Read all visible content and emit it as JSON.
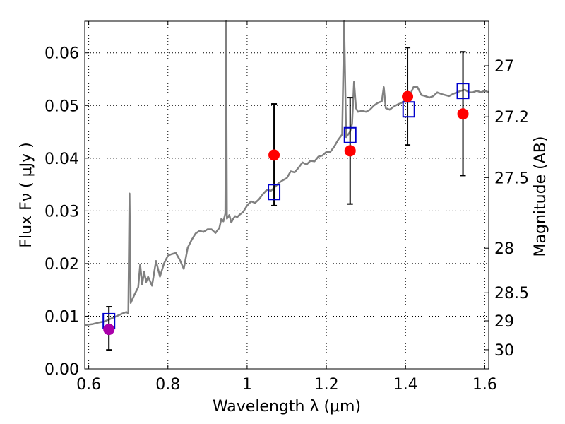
{
  "chart_data": {
    "type": "scatter",
    "xlabel": "Wavelength  λ (μm)",
    "ylabel": "Flux  Fν  ( μJy )",
    "y2label": "Magnitude (AB)",
    "xlim": [
      0.59,
      1.61
    ],
    "ylim": [
      0.0,
      0.066
    ],
    "grid": true,
    "x_ticks": [
      0.6,
      0.8,
      1.0,
      1.2,
      1.4,
      1.6
    ],
    "x_tick_labels": [
      "0.6",
      "0.8",
      "1",
      "1.2",
      "1.4",
      "1.6"
    ],
    "y_ticks": [
      0.0,
      0.01,
      0.02,
      0.03,
      0.04,
      0.05,
      0.06
    ],
    "y_tick_labels": [
      "0.00",
      "0.01",
      "0.02",
      "0.03",
      "0.04",
      "0.05",
      "0.06"
    ],
    "mag_ticks": [
      27,
      27.2,
      27.5,
      28,
      28.5,
      29,
      30
    ],
    "mag_tick_labels": [
      "27",
      "27.2",
      "27.5",
      "28",
      "28.5",
      "29",
      "30"
    ],
    "colors": {
      "spectrum": "#808080",
      "model": "#0000cc",
      "observed": "#ff0000",
      "observed_first": "#aa00aa",
      "errorbar": "#000000"
    },
    "spectrum": [
      [
        0.59,
        0.0083
      ],
      [
        0.61,
        0.0085
      ],
      [
        0.625,
        0.0088
      ],
      [
        0.64,
        0.009
      ],
      [
        0.655,
        0.0095
      ],
      [
        0.67,
        0.01
      ],
      [
        0.685,
        0.0105
      ],
      [
        0.695,
        0.0108
      ],
      [
        0.7,
        0.0105
      ],
      [
        0.703,
        0.0333
      ],
      [
        0.706,
        0.0125
      ],
      [
        0.715,
        0.014
      ],
      [
        0.725,
        0.0155
      ],
      [
        0.73,
        0.0198
      ],
      [
        0.735,
        0.016
      ],
      [
        0.74,
        0.0185
      ],
      [
        0.745,
        0.0165
      ],
      [
        0.75,
        0.0175
      ],
      [
        0.76,
        0.0158
      ],
      [
        0.77,
        0.0205
      ],
      [
        0.78,
        0.0175
      ],
      [
        0.79,
        0.02
      ],
      [
        0.8,
        0.0215
      ],
      [
        0.81,
        0.0218
      ],
      [
        0.82,
        0.022
      ],
      [
        0.83,
        0.0207
      ],
      [
        0.84,
        0.019
      ],
      [
        0.85,
        0.023
      ],
      [
        0.86,
        0.0245
      ],
      [
        0.87,
        0.0257
      ],
      [
        0.88,
        0.0262
      ],
      [
        0.89,
        0.026
      ],
      [
        0.9,
        0.0265
      ],
      [
        0.91,
        0.0265
      ],
      [
        0.92,
        0.0258
      ],
      [
        0.93,
        0.0268
      ],
      [
        0.935,
        0.0285
      ],
      [
        0.94,
        0.028
      ],
      [
        0.945,
        0.0295
      ],
      [
        0.947,
        0.069
      ],
      [
        0.949,
        0.0285
      ],
      [
        0.955,
        0.0292
      ],
      [
        0.96,
        0.0278
      ],
      [
        0.965,
        0.0285
      ],
      [
        0.97,
        0.029
      ],
      [
        0.975,
        0.0288
      ],
      [
        0.98,
        0.0292
      ],
      [
        0.99,
        0.0298
      ],
      [
        1.0,
        0.031
      ],
      [
        1.01,
        0.0318
      ],
      [
        1.02,
        0.0315
      ],
      [
        1.03,
        0.0322
      ],
      [
        1.04,
        0.0332
      ],
      [
        1.05,
        0.034
      ],
      [
        1.06,
        0.0338
      ],
      [
        1.07,
        0.0345
      ],
      [
        1.08,
        0.0353
      ],
      [
        1.09,
        0.0358
      ],
      [
        1.1,
        0.0362
      ],
      [
        1.11,
        0.0375
      ],
      [
        1.12,
        0.0373
      ],
      [
        1.13,
        0.0382
      ],
      [
        1.14,
        0.0392
      ],
      [
        1.15,
        0.0388
      ],
      [
        1.16,
        0.0395
      ],
      [
        1.17,
        0.0394
      ],
      [
        1.18,
        0.0403
      ],
      [
        1.19,
        0.0405
      ],
      [
        1.2,
        0.0412
      ],
      [
        1.21,
        0.0412
      ],
      [
        1.22,
        0.0422
      ],
      [
        1.23,
        0.0435
      ],
      [
        1.24,
        0.0445
      ],
      [
        1.245,
        0.069
      ],
      [
        1.25,
        0.044
      ],
      [
        1.26,
        0.045
      ],
      [
        1.265,
        0.0465
      ],
      [
        1.27,
        0.0545
      ],
      [
        1.275,
        0.0495
      ],
      [
        1.28,
        0.0488
      ],
      [
        1.29,
        0.049
      ],
      [
        1.3,
        0.0488
      ],
      [
        1.31,
        0.0492
      ],
      [
        1.32,
        0.05
      ],
      [
        1.33,
        0.0505
      ],
      [
        1.34,
        0.0508
      ],
      [
        1.345,
        0.0535
      ],
      [
        1.35,
        0.0495
      ],
      [
        1.36,
        0.0492
      ],
      [
        1.37,
        0.0498
      ],
      [
        1.38,
        0.0502
      ],
      [
        1.39,
        0.0505
      ],
      [
        1.4,
        0.0512
      ],
      [
        1.41,
        0.0518
      ],
      [
        1.42,
        0.0535
      ],
      [
        1.43,
        0.0535
      ],
      [
        1.44,
        0.052
      ],
      [
        1.45,
        0.0518
      ],
      [
        1.46,
        0.0515
      ],
      [
        1.47,
        0.0518
      ],
      [
        1.48,
        0.0525
      ],
      [
        1.49,
        0.0522
      ],
      [
        1.5,
        0.052
      ],
      [
        1.51,
        0.0518
      ],
      [
        1.52,
        0.0522
      ],
      [
        1.53,
        0.0525
      ],
      [
        1.54,
        0.0528
      ],
      [
        1.55,
        0.053
      ],
      [
        1.56,
        0.0525
      ],
      [
        1.57,
        0.0525
      ],
      [
        1.58,
        0.0528
      ],
      [
        1.59,
        0.0525
      ],
      [
        1.6,
        0.0528
      ],
      [
        1.61,
        0.0525
      ]
    ],
    "model_points": [
      {
        "x": 0.651,
        "y": 0.009
      },
      {
        "x": 1.068,
        "y": 0.0335
      },
      {
        "x": 1.26,
        "y": 0.0443
      },
      {
        "x": 1.408,
        "y": 0.0492
      },
      {
        "x": 1.545,
        "y": 0.0527
      }
    ],
    "observed_points": [
      {
        "x": 0.651,
        "y": 0.0075,
        "yerr_low": 0.0036,
        "yerr_high": 0.0118
      },
      {
        "x": 1.068,
        "y": 0.0406,
        "yerr_low": 0.031,
        "yerr_high": 0.0503
      },
      {
        "x": 1.26,
        "y": 0.0414,
        "yerr_low": 0.0313,
        "yerr_high": 0.0515
      },
      {
        "x": 1.405,
        "y": 0.0517,
        "yerr_low": 0.0425,
        "yerr_high": 0.061
      },
      {
        "x": 1.545,
        "y": 0.0484,
        "yerr_low": 0.0367,
        "yerr_high": 0.0602
      }
    ]
  }
}
